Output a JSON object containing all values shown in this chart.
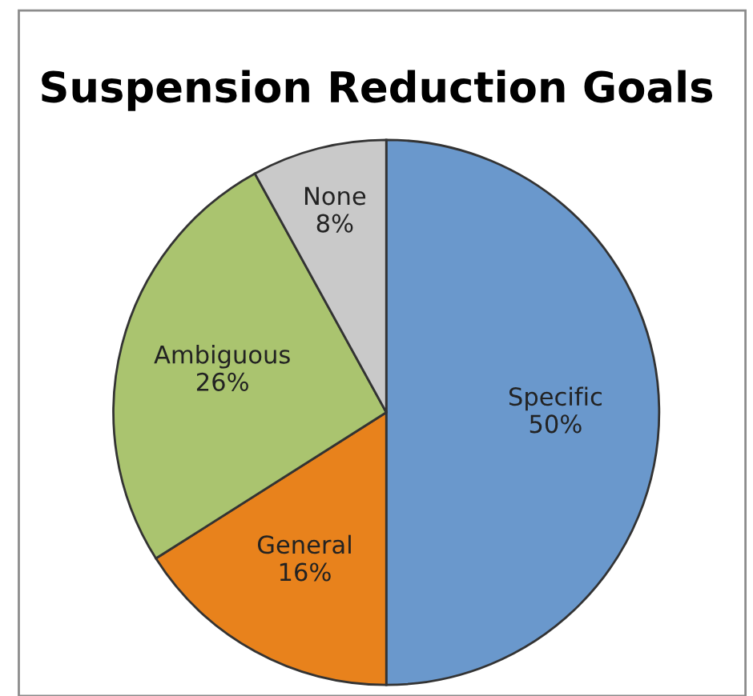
{
  "chart_data": {
    "type": "pie",
    "title": "Suspension Reduction Goals",
    "categories": [
      "Specific",
      "General",
      "Ambiguous",
      "None"
    ],
    "values": [
      50,
      16,
      26,
      8
    ],
    "value_labels": [
      "50%",
      "16%",
      "26%",
      "8%"
    ],
    "colors": [
      "#6a98cc",
      "#e8821c",
      "#aac46f",
      "#c9c9c9"
    ],
    "legend": false
  }
}
